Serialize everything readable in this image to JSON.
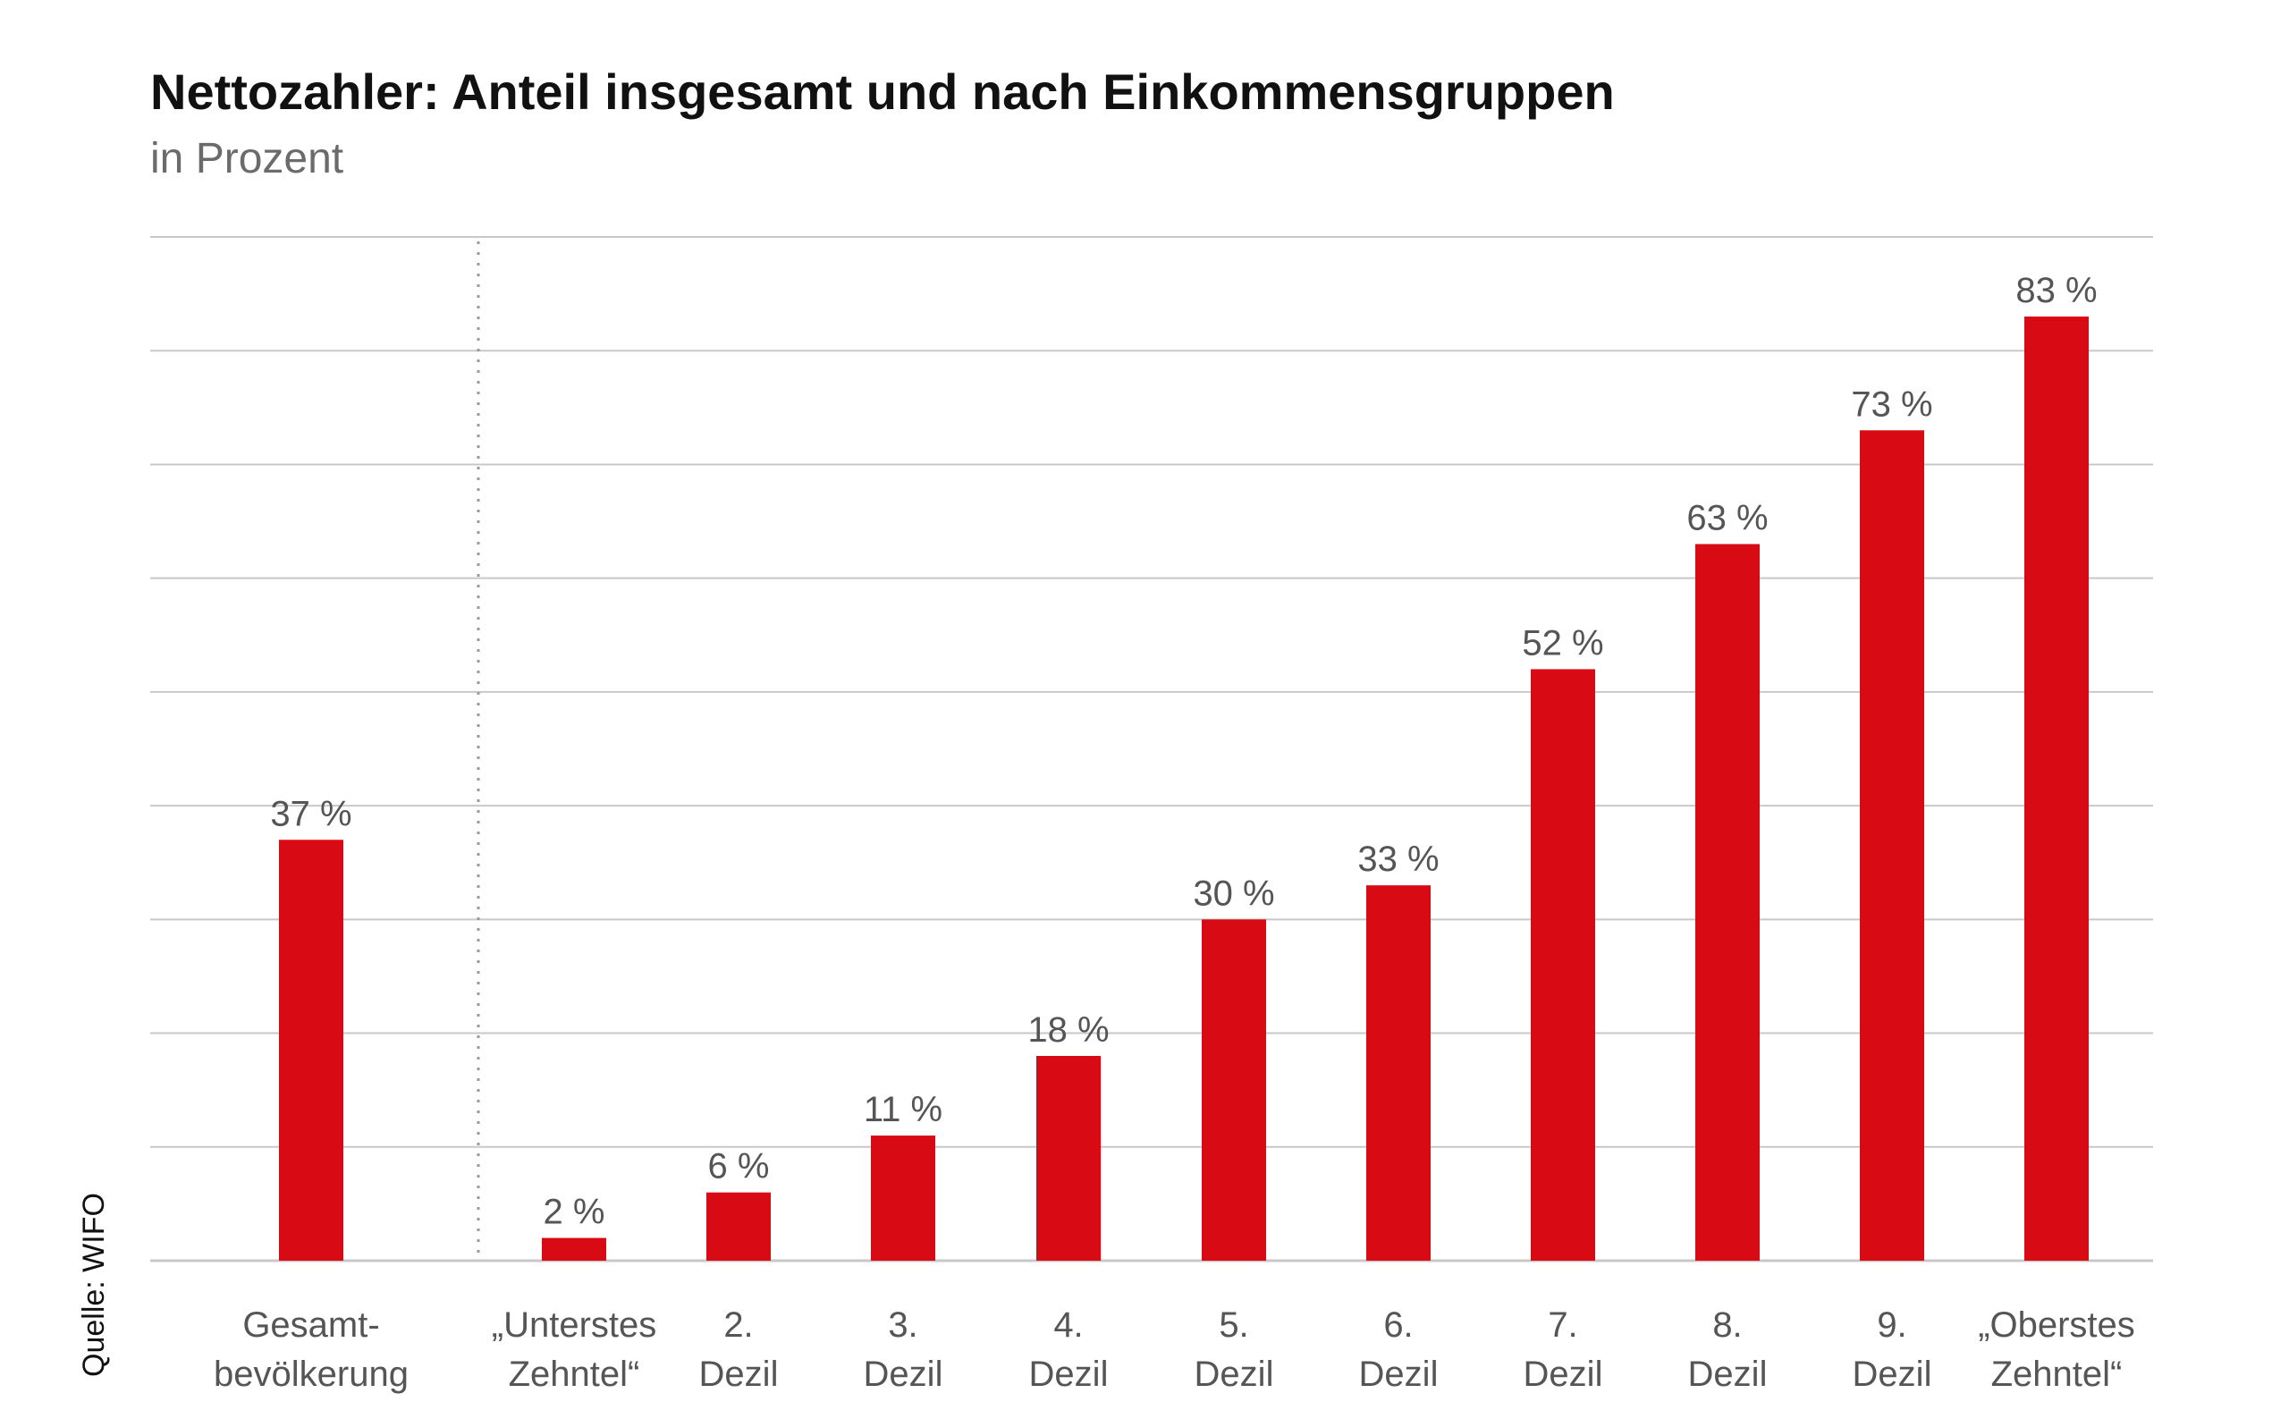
{
  "chart_data": {
    "type": "bar",
    "title": "Nettozahler: Anteil insgesamt und nach Einkommensgruppen",
    "subtitle": "in Prozent",
    "source": "Quelle: WIFO",
    "xlabel": "",
    "ylabel": "",
    "ylim": [
      0,
      90
    ],
    "grid": true,
    "value_suffix": " %",
    "bar_color": "#d80a13",
    "categories": [
      [
        "Gesamt-",
        "bevölkerung"
      ],
      [
        "„Unterstes",
        "Zehntel“"
      ],
      [
        "2.",
        "Dezil"
      ],
      [
        "3.",
        "Dezil"
      ],
      [
        "4.",
        "Dezil"
      ],
      [
        "5.",
        "Dezil"
      ],
      [
        "6.",
        "Dezil"
      ],
      [
        "7.",
        "Dezil"
      ],
      [
        "8.",
        "Dezil"
      ],
      [
        "9.",
        "Dezil"
      ],
      [
        "„Oberstes",
        "Zehntel“"
      ]
    ],
    "values": [
      37,
      2,
      6,
      11,
      18,
      30,
      33,
      52,
      63,
      73,
      83
    ]
  }
}
